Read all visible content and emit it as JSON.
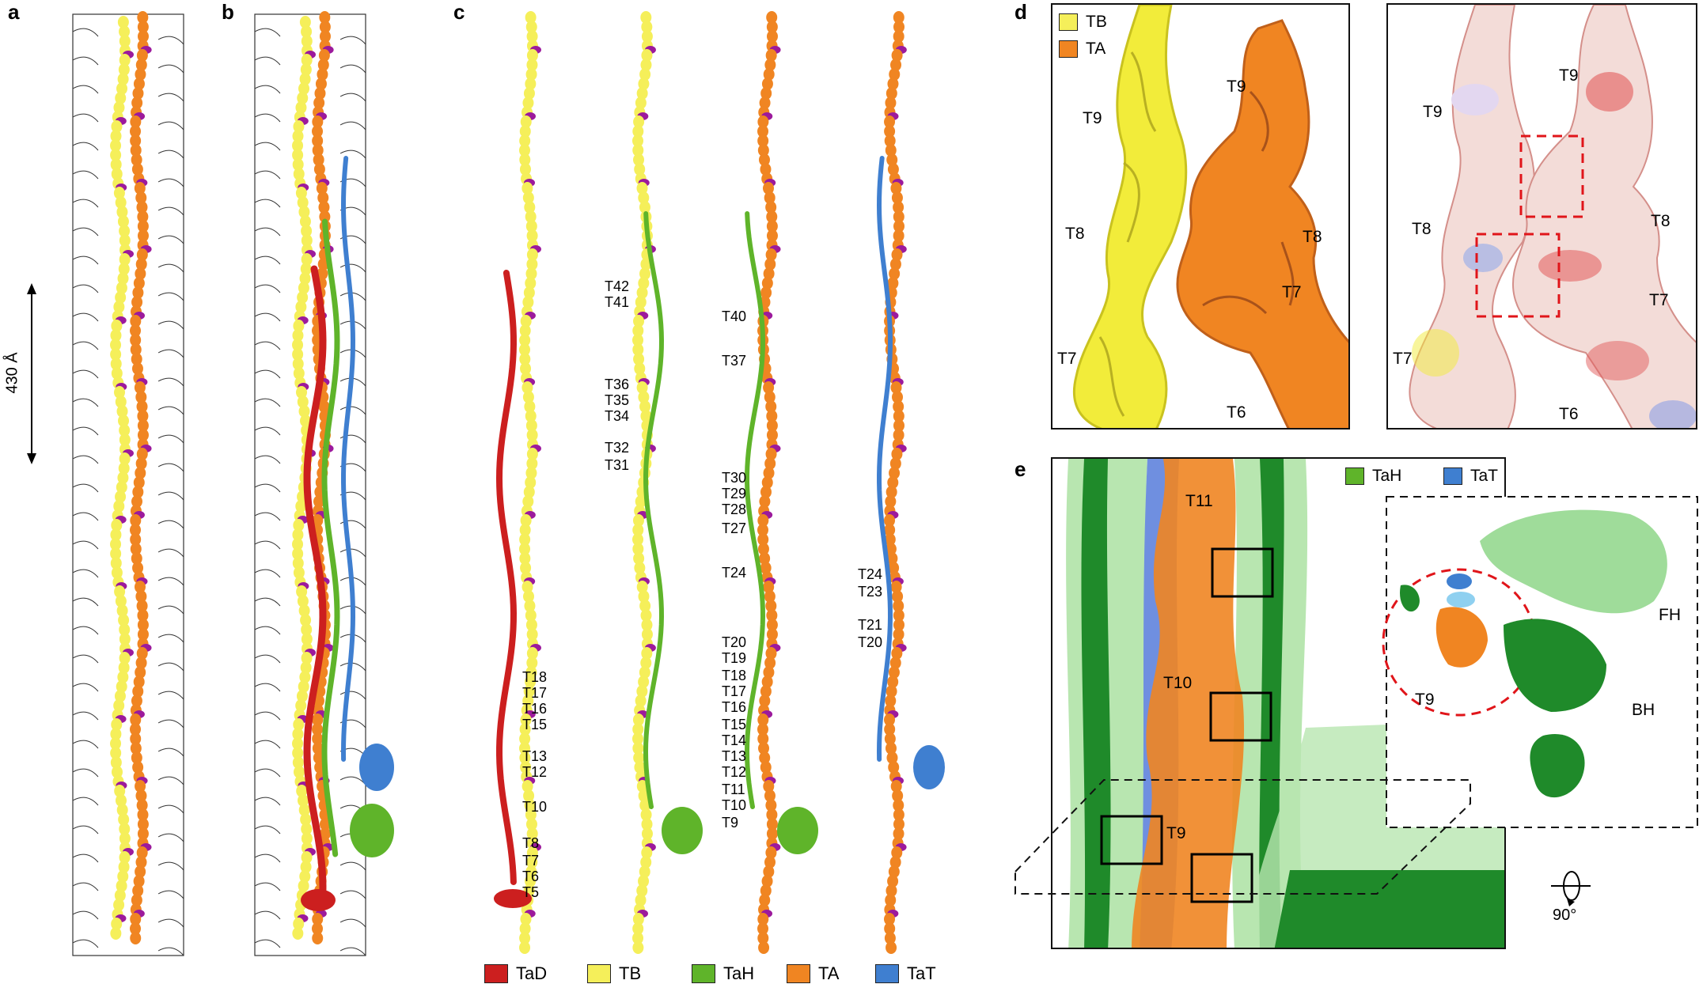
{
  "panels": {
    "a": "a",
    "b": "b",
    "c": "c",
    "d": "d",
    "e": "e"
  },
  "scale_bar": "430 Å",
  "colors": {
    "TaD": "#cc1f1f",
    "TB": "#f5ef5a",
    "TaH": "#5fb42a",
    "TA": "#f08522",
    "TaT": "#3f7fd0",
    "joint": "#9c1a9c",
    "TaH_dark": "#1f8a2a",
    "TaH_light": "#9fdc9a"
  },
  "legend_c": [
    {
      "key": "TaD",
      "label": "TaD"
    },
    {
      "key": "TB",
      "label": "TB"
    },
    {
      "key": "TaH",
      "label": "TaH"
    },
    {
      "key": "TA",
      "label": "TA"
    },
    {
      "key": "TaT",
      "label": "TaT"
    }
  ],
  "legend_d": [
    {
      "key": "TB",
      "label": "TB"
    },
    {
      "key": "TA",
      "label": "TA"
    }
  ],
  "legend_e": [
    {
      "key": "TaH",
      "label": "TaH"
    },
    {
      "key": "TaT",
      "label": "TaT"
    }
  ],
  "strand1_labels": [
    "T18",
    "T17",
    "T16",
    "T15",
    "T13",
    "T12",
    "T10",
    "T8",
    "T7",
    "T6",
    "T5"
  ],
  "strand2_labels": [
    "T42",
    "T41",
    "T36",
    "T35",
    "T34",
    "T32",
    "T31"
  ],
  "strand3_labels": [
    "T40",
    "T37",
    "T30",
    "T29",
    "T28",
    "T27",
    "T24",
    "T20",
    "T19",
    "T18",
    "T17",
    "T16",
    "T15",
    "T14",
    "T13",
    "T12",
    "T11",
    "T10",
    "T9"
  ],
  "strand4_labels": [
    "T24",
    "T23",
    "T21",
    "T20"
  ],
  "d_left": {
    "tb_t9": "T9",
    "ta_t9": "T9",
    "tb_t8": "T8",
    "ta_t8": "T8",
    "ta_t7": "T7",
    "tb_t7": "T7",
    "ta_t6": "T6"
  },
  "d_right": {
    "t9a": "T9",
    "t9b": "T9",
    "t8a": "T8",
    "t8b": "T8",
    "t7a": "T7",
    "t7b": "T7",
    "t6": "T6"
  },
  "e_main": {
    "t11": "T11",
    "t10": "T10",
    "t9": "T9"
  },
  "e_inset": {
    "fh": "FH",
    "bh": "BH",
    "t9": "T9"
  },
  "rotation": "90°"
}
